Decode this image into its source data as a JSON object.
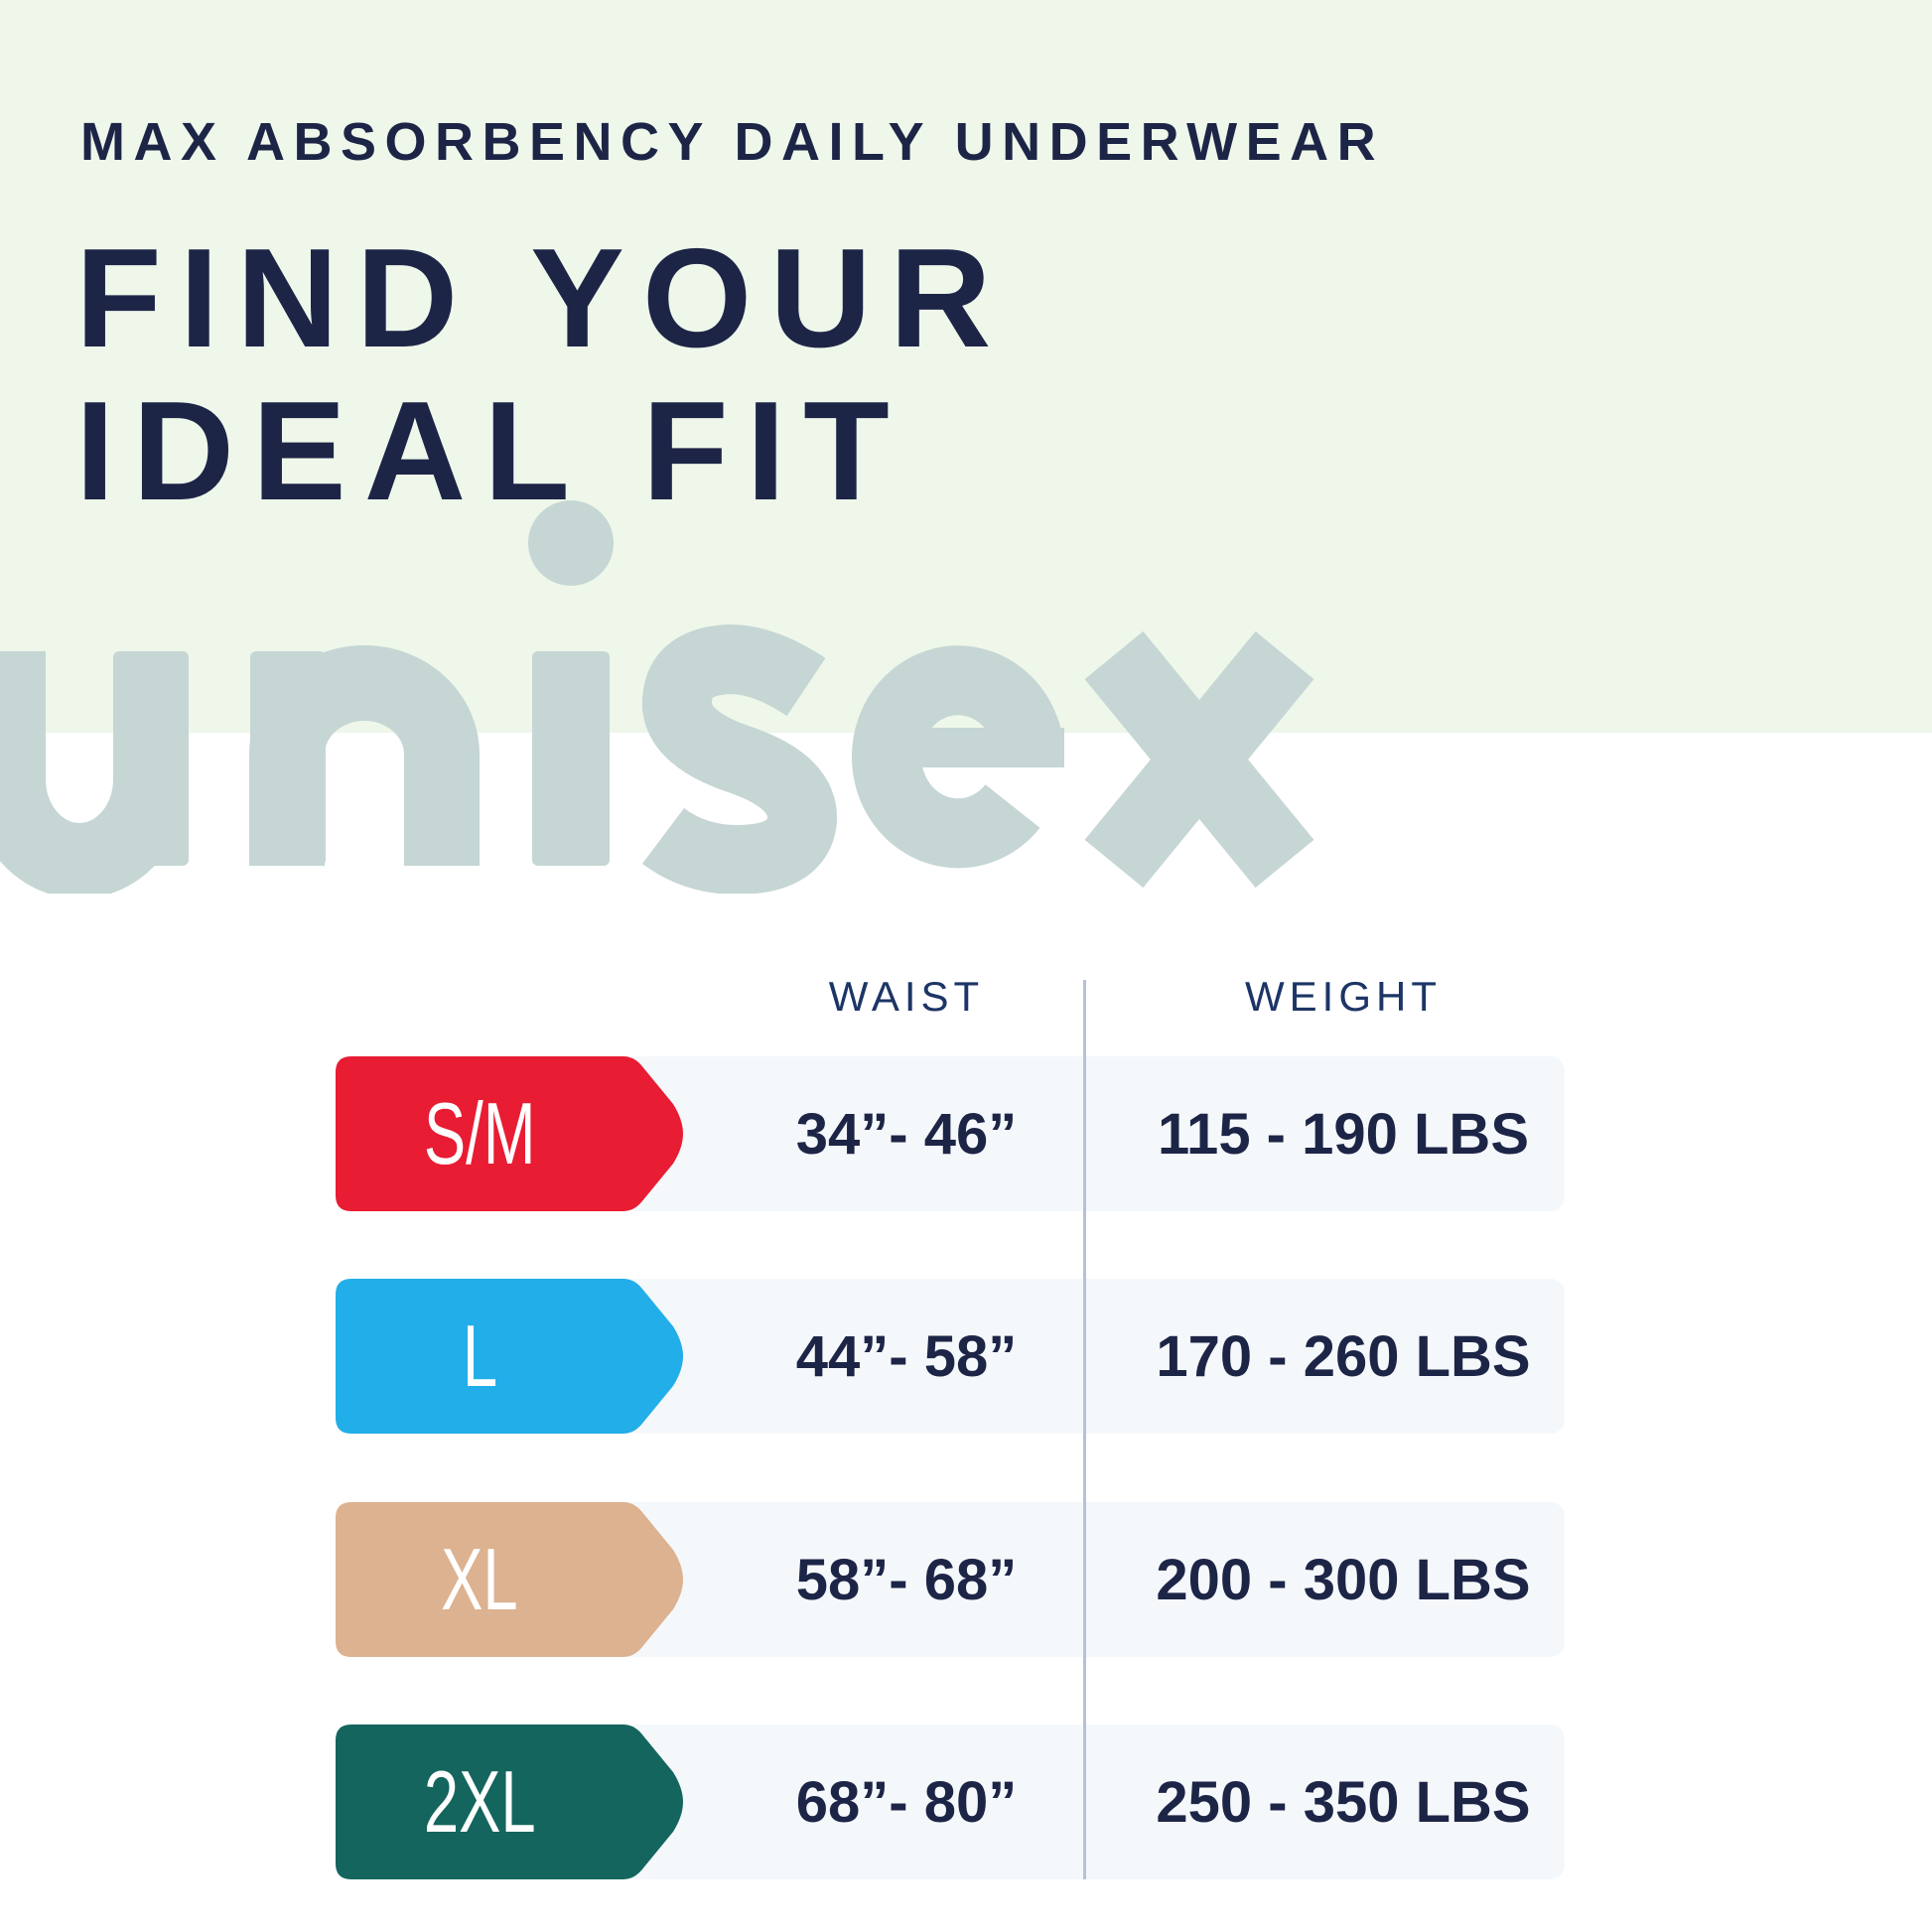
{
  "subtitle": "MAX ABSORBENCY DAILY UNDERWEAR",
  "title_line1": "FIND YOUR",
  "title_line2": "IDEAL FIT",
  "watermark": "unisex",
  "colors": {
    "navy": "#1d2547",
    "green_bg": "#eef7ea",
    "watermark": "#c5d6d4"
  },
  "table": {
    "headers": {
      "waist": "WAIST",
      "weight": "WEIGHT"
    },
    "rows": [
      {
        "size": "S/M",
        "color": "#e81c33",
        "waist": "34”- 46”",
        "weight": "115 - 190 LBS"
      },
      {
        "size": "L",
        "color": "#22aee8",
        "waist": "44”- 58”",
        "weight": "170 - 260 LBS"
      },
      {
        "size": "XL",
        "color": "#dcb290",
        "waist": "58”- 68”",
        "weight": "200 - 300 LBS"
      },
      {
        "size": "2XL",
        "color": "#14655d",
        "waist": "68”- 80”",
        "weight": "250 - 350 LBS"
      }
    ]
  }
}
